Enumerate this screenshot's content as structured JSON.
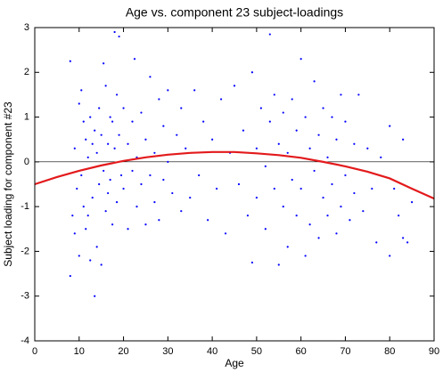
{
  "chart_data": {
    "type": "scatter",
    "title": "Age vs. component 23 subject-loadings",
    "x_label": "Age",
    "y_label": "Subject loading for component #23",
    "color": "#0000ff",
    "x": [
      8,
      8,
      8.5,
      9,
      9,
      9.5,
      10,
      10,
      10.5,
      10.5,
      11,
      11,
      11.5,
      11.5,
      12,
      12,
      12.5,
      12.5,
      13,
      13,
      13.5,
      13.5,
      14,
      14,
      14.5,
      14.5,
      15,
      15,
      15.5,
      15.5,
      16,
      16,
      16.5,
      16.5,
      17,
      17,
      17.5,
      17.5,
      18,
      18,
      18.5,
      18.5,
      19,
      19,
      19.5,
      20,
      20,
      21,
      21,
      22,
      22,
      22.5,
      23,
      23,
      24,
      24,
      25,
      25,
      26,
      26,
      27,
      27,
      28,
      28,
      29,
      29,
      30,
      30,
      31,
      32,
      33,
      33,
      34,
      35,
      36,
      37,
      38,
      39,
      40,
      41,
      42,
      43,
      44,
      45,
      46,
      47,
      48,
      49,
      49,
      50,
      50,
      51,
      52,
      52,
      53,
      53,
      54,
      54,
      55,
      55,
      56,
      56,
      57,
      57,
      58,
      58,
      59,
      59,
      60,
      60,
      61,
      61,
      62,
      62,
      63,
      63,
      64,
      64,
      65,
      65,
      66,
      66,
      67,
      67,
      68,
      68,
      69,
      69,
      70,
      70,
      71,
      72,
      72,
      73,
      74,
      75,
      76,
      77,
      78,
      80,
      80,
      81,
      82,
      83,
      83,
      84,
      85
    ],
    "values": [
      2.25,
      -2.55,
      -1.2,
      -1.6,
      0.3,
      -0.6,
      1.3,
      -2.1,
      1.6,
      -0.3,
      0.9,
      -1.0,
      -1.5,
      0.5,
      -1.2,
      0.1,
      1.0,
      -2.2,
      0.4,
      -0.8,
      -3.0,
      0.7,
      -1.9,
      0.2,
      -0.5,
      1.2,
      -2.3,
      0.6,
      2.2,
      -0.2,
      1.7,
      -1.1,
      0.4,
      -0.7,
      1.0,
      -0.4,
      0.9,
      -1.4,
      2.9,
      0.3,
      1.5,
      -0.9,
      0.6,
      2.8,
      -0.3,
      1.2,
      -0.6,
      0.4,
      -1.5,
      0.9,
      -0.2,
      2.3,
      0.1,
      -1.0,
      1.1,
      -0.5,
      0.5,
      -1.4,
      1.9,
      -0.3,
      0.2,
      -0.9,
      1.4,
      -1.3,
      0.8,
      -0.4,
      0.0,
      1.6,
      -0.7,
      0.6,
      -1.1,
      1.2,
      0.3,
      -0.8,
      1.6,
      -0.3,
      0.9,
      -1.3,
      0.5,
      -0.6,
      1.4,
      -1.6,
      0.2,
      1.7,
      -0.5,
      0.7,
      -1.2,
      2.0,
      -2.25,
      0.3,
      -0.8,
      1.2,
      -1.5,
      -0.1,
      0.9,
      2.85,
      -0.6,
      1.5,
      -2.3,
      0.4,
      -1.0,
      1.1,
      0.2,
      -1.9,
      -0.4,
      1.4,
      -1.2,
      0.7,
      2.3,
      -0.6,
      1.0,
      -2.1,
      0.3,
      -1.4,
      1.8,
      -0.2,
      0.6,
      -1.7,
      1.2,
      -0.8,
      0.1,
      -1.2,
      1.0,
      -0.5,
      -1.6,
      0.5,
      1.5,
      -1.0,
      -0.3,
      0.9,
      -1.3,
      0.4,
      -0.7,
      1.5,
      -1.1,
      0.3,
      -0.6,
      -1.8,
      0.1,
      0.8,
      -2.1,
      -0.6,
      -1.2,
      0.5,
      -1.7,
      -1.8,
      -0.9
    ],
    "fit": {
      "color": "#e31a1c",
      "x": [
        0,
        5,
        10,
        15,
        20,
        25,
        30,
        35,
        40,
        45,
        50,
        55,
        60,
        65,
        70,
        75,
        80,
        85,
        90
      ],
      "values": [
        -0.5,
        -0.34,
        -0.2,
        -0.08,
        0.02,
        0.1,
        0.16,
        0.2,
        0.22,
        0.22,
        0.19,
        0.15,
        0.09,
        0.0,
        -0.1,
        -0.22,
        -0.37,
        -0.6,
        -0.82
      ]
    },
    "reference_line": 0,
    "xlim": [
      0,
      90
    ],
    "xticks": [
      0,
      10,
      20,
      30,
      40,
      50,
      60,
      70,
      80,
      90
    ],
    "ylim": [
      -4,
      3
    ],
    "yticks": [
      -4,
      -3,
      -2,
      -1,
      0,
      1,
      2,
      3
    ],
    "grid": false
  }
}
